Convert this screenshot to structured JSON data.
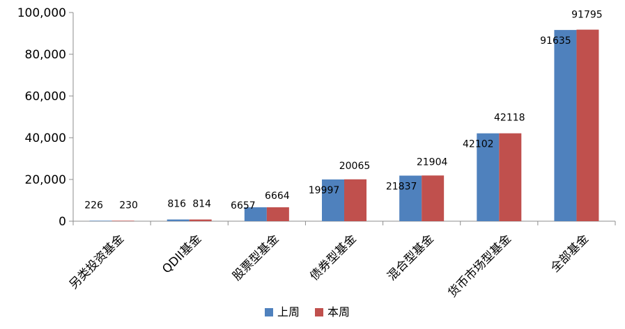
{
  "chart_data": {
    "type": "bar",
    "categories": [
      "另类投资基金",
      "QDII基金",
      "股票型基金",
      "债券型基金",
      "混合型基金",
      "货币市场型基金",
      "全部基金"
    ],
    "series": [
      {
        "name": "上周",
        "color": "#4f81bd",
        "values": [
          226,
          816,
          6657,
          19997,
          21837,
          42102,
          91635
        ]
      },
      {
        "name": "本周",
        "color": "#c0504d",
        "values": [
          230,
          814,
          6664,
          20065,
          21904,
          42118,
          91795
        ]
      }
    ],
    "yticks": [
      "0",
      "20,000",
      "40,000",
      "60,000",
      "80,000",
      "100,000"
    ],
    "ylim": [
      0,
      100000
    ],
    "data_labels": {
      "series0": [
        "226",
        "816",
        "6657",
        "19997",
        "21837",
        "42102",
        "91635"
      ],
      "series1": [
        "230",
        "814",
        "6664",
        "20065",
        "21904",
        "42118",
        "91795"
      ]
    },
    "title": "",
    "xlabel": "",
    "ylabel": "",
    "grid": false,
    "legend_position": "bottom"
  }
}
